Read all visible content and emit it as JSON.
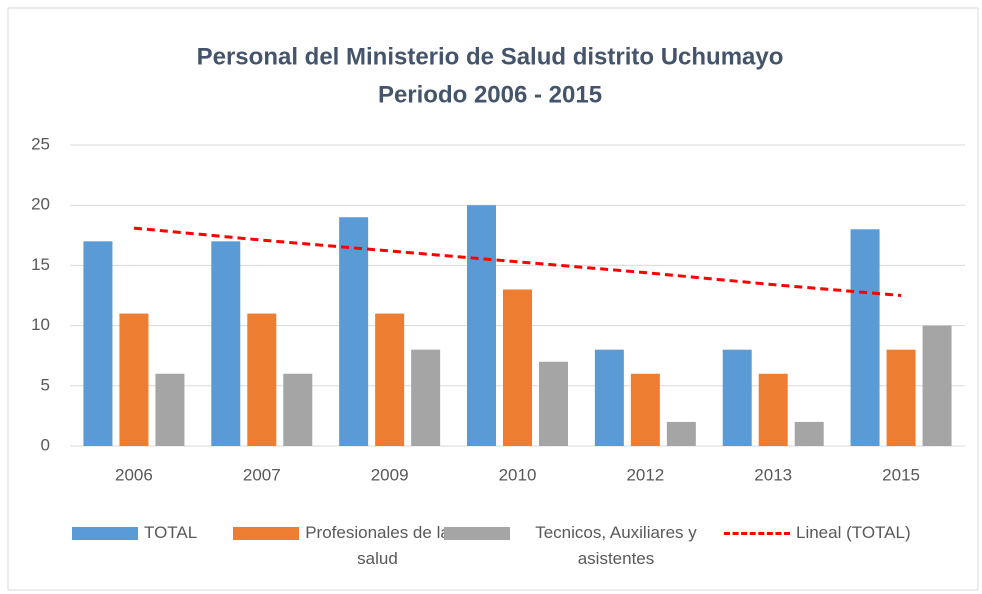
{
  "chart_data": {
    "type": "bar",
    "title": "Personal del Ministerio de Salud distrito Uchumayo",
    "subtitle": "Periodo 2006 - 2015",
    "categories": [
      "2006",
      "2007",
      "2009",
      "2010",
      "2012",
      "2013",
      "2015"
    ],
    "series": [
      {
        "name": "TOTAL",
        "color": "#5b9bd5",
        "values": [
          17,
          17,
          19,
          20,
          8,
          8,
          18
        ]
      },
      {
        "name": "Profesionales de la salud",
        "color": "#ed7d31",
        "values": [
          11,
          11,
          11,
          13,
          6,
          6,
          8
        ]
      },
      {
        "name": "Tecnicos, Auxiliares y asistentes",
        "color": "#a5a5a5",
        "values": [
          6,
          6,
          8,
          7,
          2,
          2,
          10
        ]
      },
      {
        "name": "Lineal (TOTAL)",
        "type": "line",
        "dashed": true,
        "color": "#ff0000",
        "values": [
          18.1,
          17.1,
          16.2,
          15.3,
          14.4,
          13.4,
          12.5
        ]
      }
    ],
    "ylim": [
      0,
      25
    ],
    "yticks": [
      0,
      5,
      10,
      15,
      20,
      25
    ],
    "grid": true,
    "legend": "bottom"
  }
}
